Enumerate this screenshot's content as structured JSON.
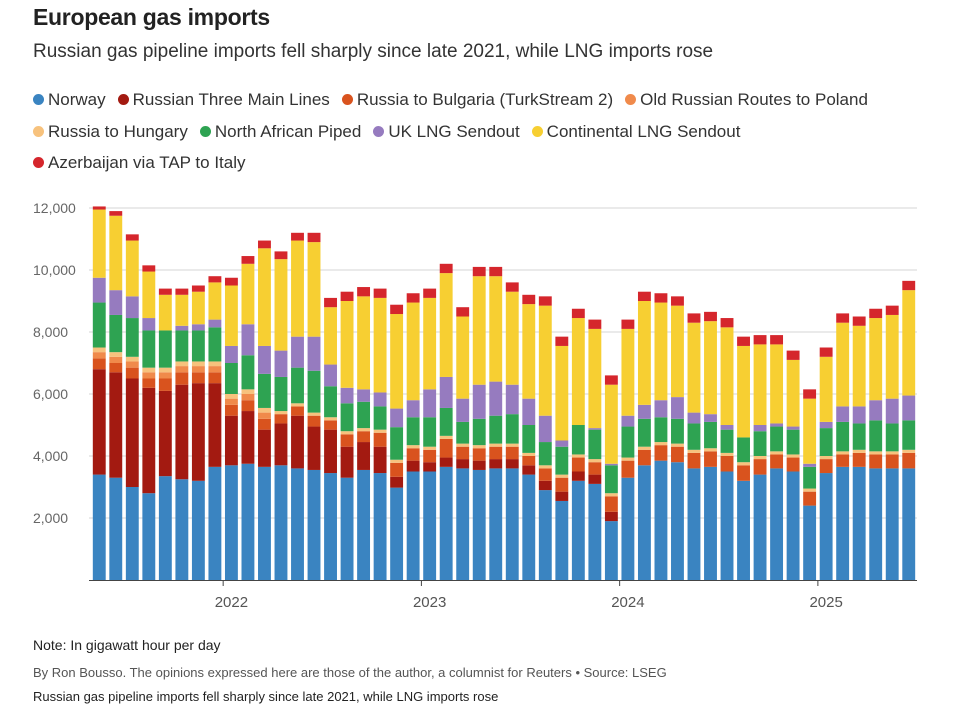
{
  "header": {
    "title": "European gas imports",
    "subtitle": "Russian gas pipeline imports fell sharply since late 2021, while LNG imports rose"
  },
  "footer": {
    "note": "Note: In gigawatt hour per day",
    "byline": "By Ron Bousso. The opinions expressed here are those of the author, a columnist for Reuters • Source: LSEG",
    "caption": "Russian gas pipeline imports fell sharply since late 2021, while LNG imports rose"
  },
  "chart_data": {
    "type": "bar",
    "stacked": true,
    "title": "European gas imports",
    "subtitle": "Russian gas pipeline imports fell sharply since late 2021, while LNG imports rose",
    "ylabel": "",
    "xlabel": "",
    "unit": "gigawatt hour per day",
    "ylim": [
      0,
      12000
    ],
    "yticks": [
      2000,
      4000,
      6000,
      8000,
      10000,
      12000
    ],
    "ytick_labels": [
      "2,000",
      "4,000",
      "6,000",
      "8,000",
      "10,000",
      "12,000"
    ],
    "x_tick_labels": [
      {
        "label": "2022",
        "after_bar": 8
      },
      {
        "label": "2023",
        "after_bar": 20
      },
      {
        "label": "2024",
        "after_bar": 32
      },
      {
        "label": "2025",
        "after_bar": 44
      }
    ],
    "grid": true,
    "legend_position": "top",
    "categories": [
      "2021-01",
      "2021-02",
      "2021-03",
      "2021-04",
      "2021-05",
      "2021-06",
      "2021-07",
      "2021-08",
      "2021-09",
      "2021-10",
      "2021-11",
      "2021-12",
      "2022-01",
      "2022-02",
      "2022-03",
      "2022-04",
      "2022-05",
      "2022-06",
      "2022-07",
      "2022-08",
      "2022-09",
      "2022-10",
      "2022-11",
      "2022-12",
      "2023-01",
      "2023-02",
      "2023-03",
      "2023-04",
      "2023-05",
      "2023-06",
      "2023-07",
      "2023-08",
      "2023-09",
      "2023-10",
      "2023-11",
      "2023-12",
      "2024-01",
      "2024-02",
      "2024-03",
      "2024-04",
      "2024-05",
      "2024-06",
      "2024-07",
      "2024-08",
      "2024-09",
      "2024-10",
      "2024-11",
      "2024-12",
      "2025-01",
      "2025-02"
    ],
    "series": [
      {
        "name": "Norway",
        "color": "#3a84c1",
        "values": [
          3400,
          3300,
          3000,
          2800,
          3350,
          3250,
          3200,
          3650,
          3700,
          3750,
          3650,
          3700,
          3600,
          3550,
          3450,
          3300,
          3550,
          3450,
          2980,
          3500,
          3500,
          3650,
          3600,
          3550,
          3600,
          3600,
          3400,
          2900,
          2550,
          3200,
          3100,
          1900,
          3300,
          3700,
          3850,
          3800,
          3600,
          3650,
          3500,
          3200,
          3400,
          3600,
          3500,
          2400,
          3450,
          3650,
          3650,
          3600,
          3600,
          3600
        ]
      },
      {
        "name": "Russian Three Main Lines",
        "color": "#a31a11",
        "values": [
          3400,
          3400,
          3500,
          3400,
          2750,
          3050,
          3150,
          2700,
          1600,
          1700,
          1200,
          1350,
          1700,
          1400,
          1400,
          1000,
          900,
          850,
          350,
          350,
          300,
          300,
          300,
          300,
          300,
          300,
          300,
          300,
          300,
          300,
          300,
          300,
          0,
          0,
          0,
          0,
          0,
          0,
          0,
          0,
          0,
          0,
          0,
          0,
          0,
          0,
          0,
          0,
          0,
          0
        ]
      },
      {
        "name": "Russia to Bulgaria (TurkStream 2)",
        "color": "#d9531e",
        "values": [
          350,
          300,
          350,
          300,
          400,
          400,
          350,
          350,
          350,
          350,
          350,
          300,
          300,
          350,
          300,
          400,
          350,
          450,
          450,
          400,
          400,
          600,
          400,
          400,
          400,
          400,
          300,
          400,
          450,
          450,
          400,
          500,
          550,
          500,
          500,
          500,
          500,
          500,
          500,
          500,
          500,
          450,
          450,
          450,
          450,
          400,
          450,
          450,
          450,
          500
        ]
      },
      {
        "name": "Old Russian Routes to Poland",
        "color": "#f08a4b",
        "values": [
          200,
          200,
          200,
          200,
          200,
          200,
          200,
          200,
          200,
          200,
          200,
          0,
          0,
          0,
          0,
          0,
          0,
          0,
          0,
          0,
          0,
          0,
          0,
          0,
          0,
          0,
          0,
          0,
          0,
          0,
          0,
          0,
          0,
          0,
          0,
          0,
          0,
          0,
          0,
          0,
          0,
          0,
          0,
          0,
          0,
          0,
          0,
          0,
          0,
          0
        ]
      },
      {
        "name": "Russia to Hungary",
        "color": "#f7c27d",
        "values": [
          150,
          150,
          150,
          150,
          150,
          150,
          150,
          150,
          150,
          150,
          150,
          100,
          100,
          100,
          100,
          100,
          100,
          100,
          100,
          100,
          100,
          100,
          100,
          100,
          100,
          100,
          100,
          100,
          100,
          100,
          100,
          100,
          100,
          100,
          100,
          100,
          100,
          100,
          100,
          100,
          100,
          100,
          100,
          100,
          100,
          100,
          100,
          100,
          100,
          100
        ]
      },
      {
        "name": "North African Piped",
        "color": "#2ea352",
        "values": [
          1450,
          1200,
          1250,
          1200,
          1200,
          1000,
          1000,
          1100,
          1000,
          1100,
          1100,
          1100,
          1150,
          1350,
          1000,
          900,
          850,
          750,
          1050,
          900,
          950,
          900,
          700,
          850,
          900,
          950,
          900,
          750,
          900,
          950,
          950,
          900,
          1000,
          900,
          800,
          800,
          850,
          850,
          750,
          800,
          800,
          800,
          800,
          700,
          900,
          950,
          850,
          1000,
          900,
          950
        ]
      },
      {
        "name": "UK LNG Sendout",
        "color": "#967bbf",
        "values": [
          800,
          800,
          700,
          400,
          0,
          150,
          200,
          250,
          550,
          1000,
          900,
          850,
          1000,
          1100,
          700,
          500,
          400,
          450,
          600,
          550,
          900,
          1000,
          750,
          1100,
          1100,
          950,
          850,
          850,
          200,
          0,
          50,
          50,
          350,
          450,
          550,
          700,
          350,
          250,
          150,
          0,
          200,
          100,
          100,
          100,
          200,
          500,
          550,
          650,
          800,
          800
        ]
      },
      {
        "name": "Continental LNG Sendout",
        "color": "#f7cf32",
        "values": [
          2200,
          2400,
          1800,
          1500,
          1150,
          1000,
          1050,
          1200,
          1950,
          1950,
          3150,
          2950,
          3100,
          3050,
          1850,
          2800,
          3000,
          3050,
          3050,
          3150,
          2950,
          3350,
          2650,
          3500,
          3400,
          3000,
          3050,
          3550,
          3050,
          3450,
          3200,
          2550,
          2800,
          3350,
          3150,
          2950,
          2900,
          3000,
          3150,
          2950,
          2600,
          2550,
          2150,
          2100,
          2100,
          2700,
          2600,
          2650,
          2700,
          3400
        ]
      },
      {
        "name": "Azerbaijan via TAP to Italy",
        "color": "#d5262c",
        "values": [
          100,
          150,
          200,
          200,
          200,
          200,
          200,
          200,
          250,
          250,
          250,
          250,
          250,
          300,
          300,
          300,
          300,
          300,
          300,
          300,
          300,
          300,
          300,
          300,
          300,
          300,
          300,
          300,
          300,
          300,
          300,
          300,
          300,
          300,
          300,
          300,
          300,
          300,
          300,
          300,
          300,
          300,
          300,
          300,
          300,
          300,
          300,
          300,
          300,
          300
        ]
      }
    ]
  }
}
